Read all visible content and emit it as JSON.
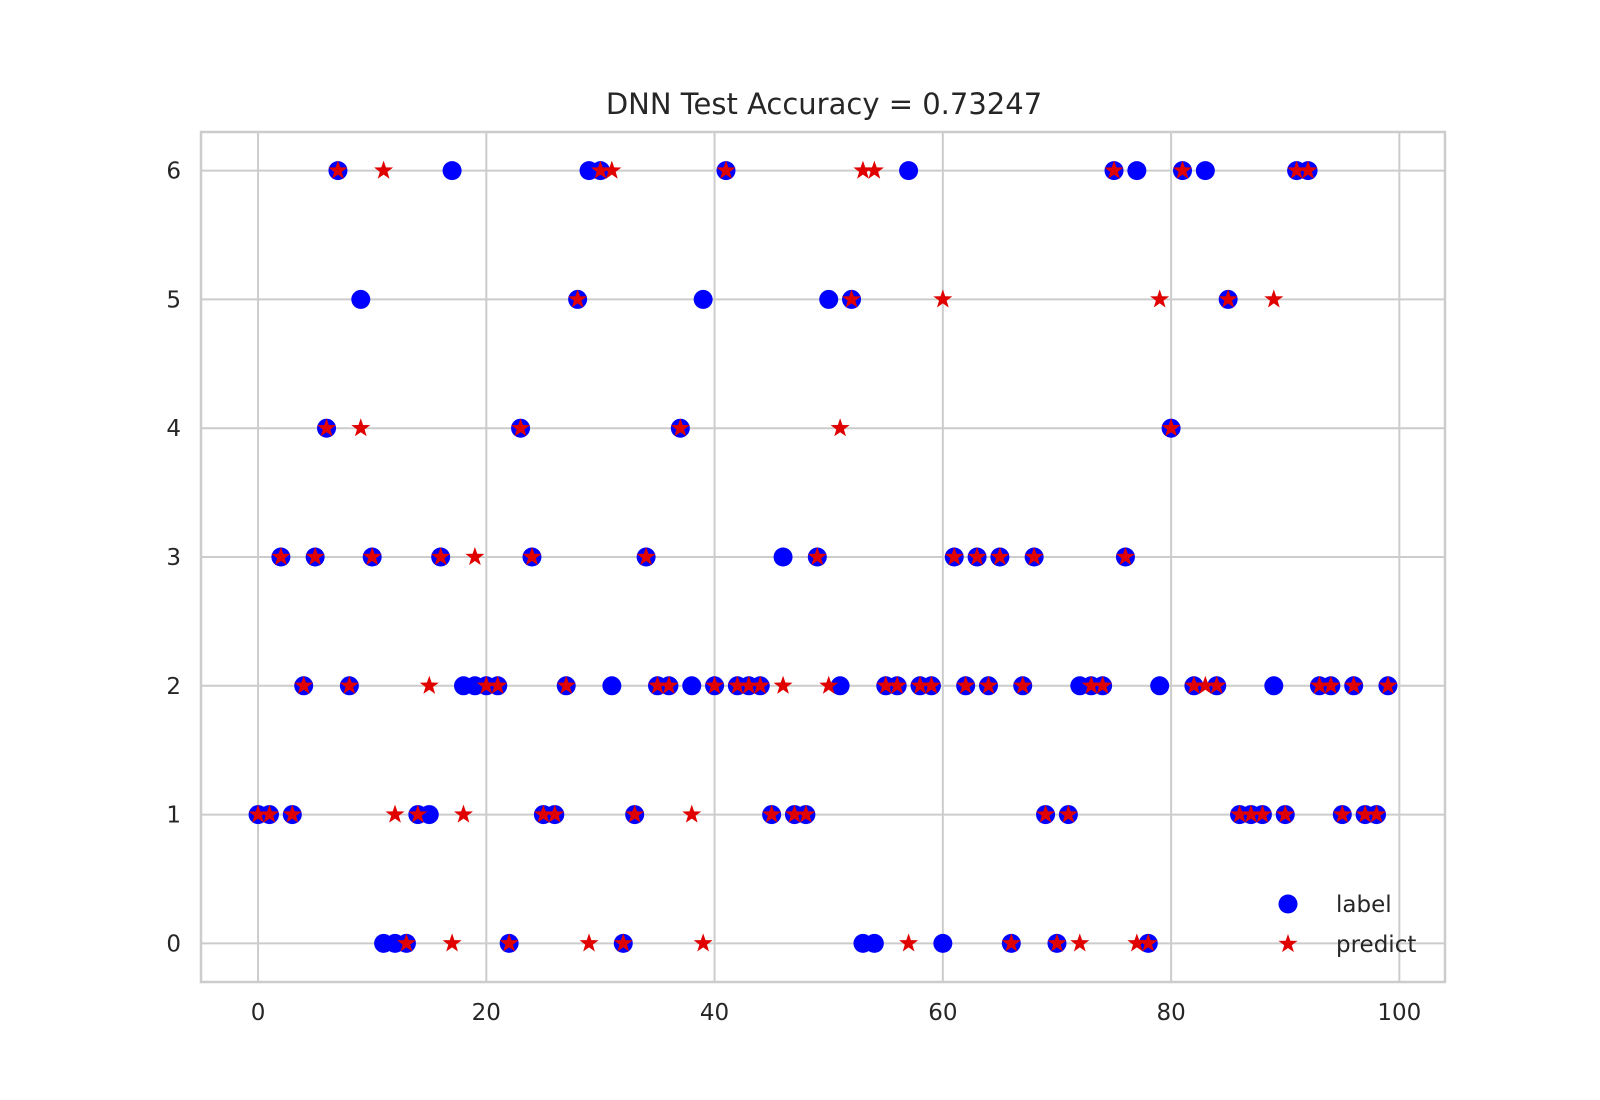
{
  "chart_data": {
    "type": "scatter",
    "title": "DNN Test Accuracy = 0.73247",
    "xlabel": "",
    "ylabel": "",
    "xlim": [
      -5,
      104
    ],
    "ylim": [
      -0.3,
      6.3
    ],
    "xticks": [
      0,
      20,
      40,
      60,
      80,
      100
    ],
    "yticks": [
      0,
      1,
      2,
      3,
      4,
      5,
      6
    ],
    "grid": true,
    "legend_position": "bottom-right",
    "series": [
      {
        "name": "label",
        "marker": "circle",
        "color": "#0000ff",
        "x": [
          0,
          1,
          2,
          3,
          4,
          5,
          6,
          7,
          8,
          9,
          10,
          11,
          12,
          13,
          14,
          15,
          16,
          17,
          18,
          19,
          20,
          21,
          22,
          23,
          24,
          25,
          26,
          27,
          28,
          29,
          30,
          31,
          32,
          33,
          34,
          35,
          36,
          37,
          38,
          39,
          40,
          41,
          42,
          43,
          44,
          45,
          46,
          47,
          48,
          49,
          50,
          51,
          52,
          53,
          54,
          55,
          56,
          57,
          58,
          59,
          60,
          61,
          62,
          63,
          64,
          65,
          66,
          67,
          68,
          69,
          70,
          71,
          72,
          73,
          74,
          75,
          76,
          77,
          78,
          79,
          80,
          81,
          82,
          83,
          84,
          85,
          86,
          87,
          88,
          89,
          90,
          91,
          92,
          93,
          94,
          95,
          96,
          97,
          98,
          99
        ],
        "y": [
          1,
          1,
          3,
          1,
          2,
          3,
          4,
          6,
          2,
          5,
          3,
          0,
          0,
          0,
          1,
          1,
          3,
          6,
          2,
          2,
          2,
          2,
          0,
          4,
          3,
          1,
          1,
          2,
          5,
          6,
          6,
          2,
          0,
          1,
          3,
          2,
          2,
          4,
          2,
          5,
          2,
          6,
          2,
          2,
          2,
          1,
          3,
          1,
          1,
          3,
          5,
          2,
          5,
          0,
          0,
          2,
          2,
          6,
          2,
          2,
          0,
          3,
          2,
          3,
          2,
          3,
          0,
          2,
          3,
          1,
          0,
          1,
          2,
          2,
          2,
          6,
          3,
          6,
          0,
          2,
          4,
          6,
          2,
          6,
          2,
          5,
          1,
          1,
          1,
          2,
          1,
          6,
          6,
          2,
          2,
          1,
          2,
          1,
          1,
          2
        ]
      },
      {
        "name": "predict",
        "marker": "star",
        "color": "#e00000",
        "x": [
          0,
          1,
          2,
          3,
          4,
          5,
          6,
          7,
          8,
          9,
          10,
          11,
          12,
          13,
          14,
          15,
          16,
          17,
          18,
          19,
          20,
          21,
          22,
          23,
          24,
          25,
          26,
          27,
          28,
          29,
          30,
          31,
          32,
          33,
          34,
          35,
          36,
          37,
          38,
          39,
          40,
          41,
          42,
          43,
          44,
          45,
          46,
          47,
          48,
          49,
          50,
          51,
          52,
          53,
          54,
          55,
          56,
          57,
          58,
          59,
          60,
          61,
          62,
          63,
          64,
          65,
          66,
          67,
          68,
          69,
          70,
          71,
          72,
          73,
          74,
          75,
          76,
          77,
          78,
          79,
          80,
          81,
          82,
          83,
          84,
          85,
          86,
          87,
          88,
          89,
          90,
          91,
          92,
          93,
          94,
          95,
          96,
          97,
          98,
          99
        ],
        "y": [
          1,
          1,
          3,
          1,
          2,
          3,
          4,
          6,
          2,
          4,
          3,
          6,
          1,
          0,
          1,
          2,
          3,
          0,
          1,
          3,
          2,
          2,
          0,
          4,
          3,
          1,
          1,
          2,
          5,
          0,
          6,
          6,
          0,
          1,
          3,
          2,
          2,
          4,
          1,
          0,
          2,
          6,
          2,
          2,
          2,
          1,
          2,
          1,
          1,
          3,
          2,
          4,
          5,
          6,
          6,
          2,
          2,
          0,
          2,
          2,
          5,
          3,
          2,
          3,
          2,
          3,
          0,
          2,
          3,
          1,
          0,
          1,
          0,
          2,
          2,
          6,
          3,
          0,
          0,
          5,
          4,
          6,
          2,
          2,
          2,
          5,
          1,
          1,
          1,
          5,
          1,
          6,
          6,
          2,
          2,
          1,
          2,
          1,
          1,
          2
        ]
      }
    ]
  }
}
